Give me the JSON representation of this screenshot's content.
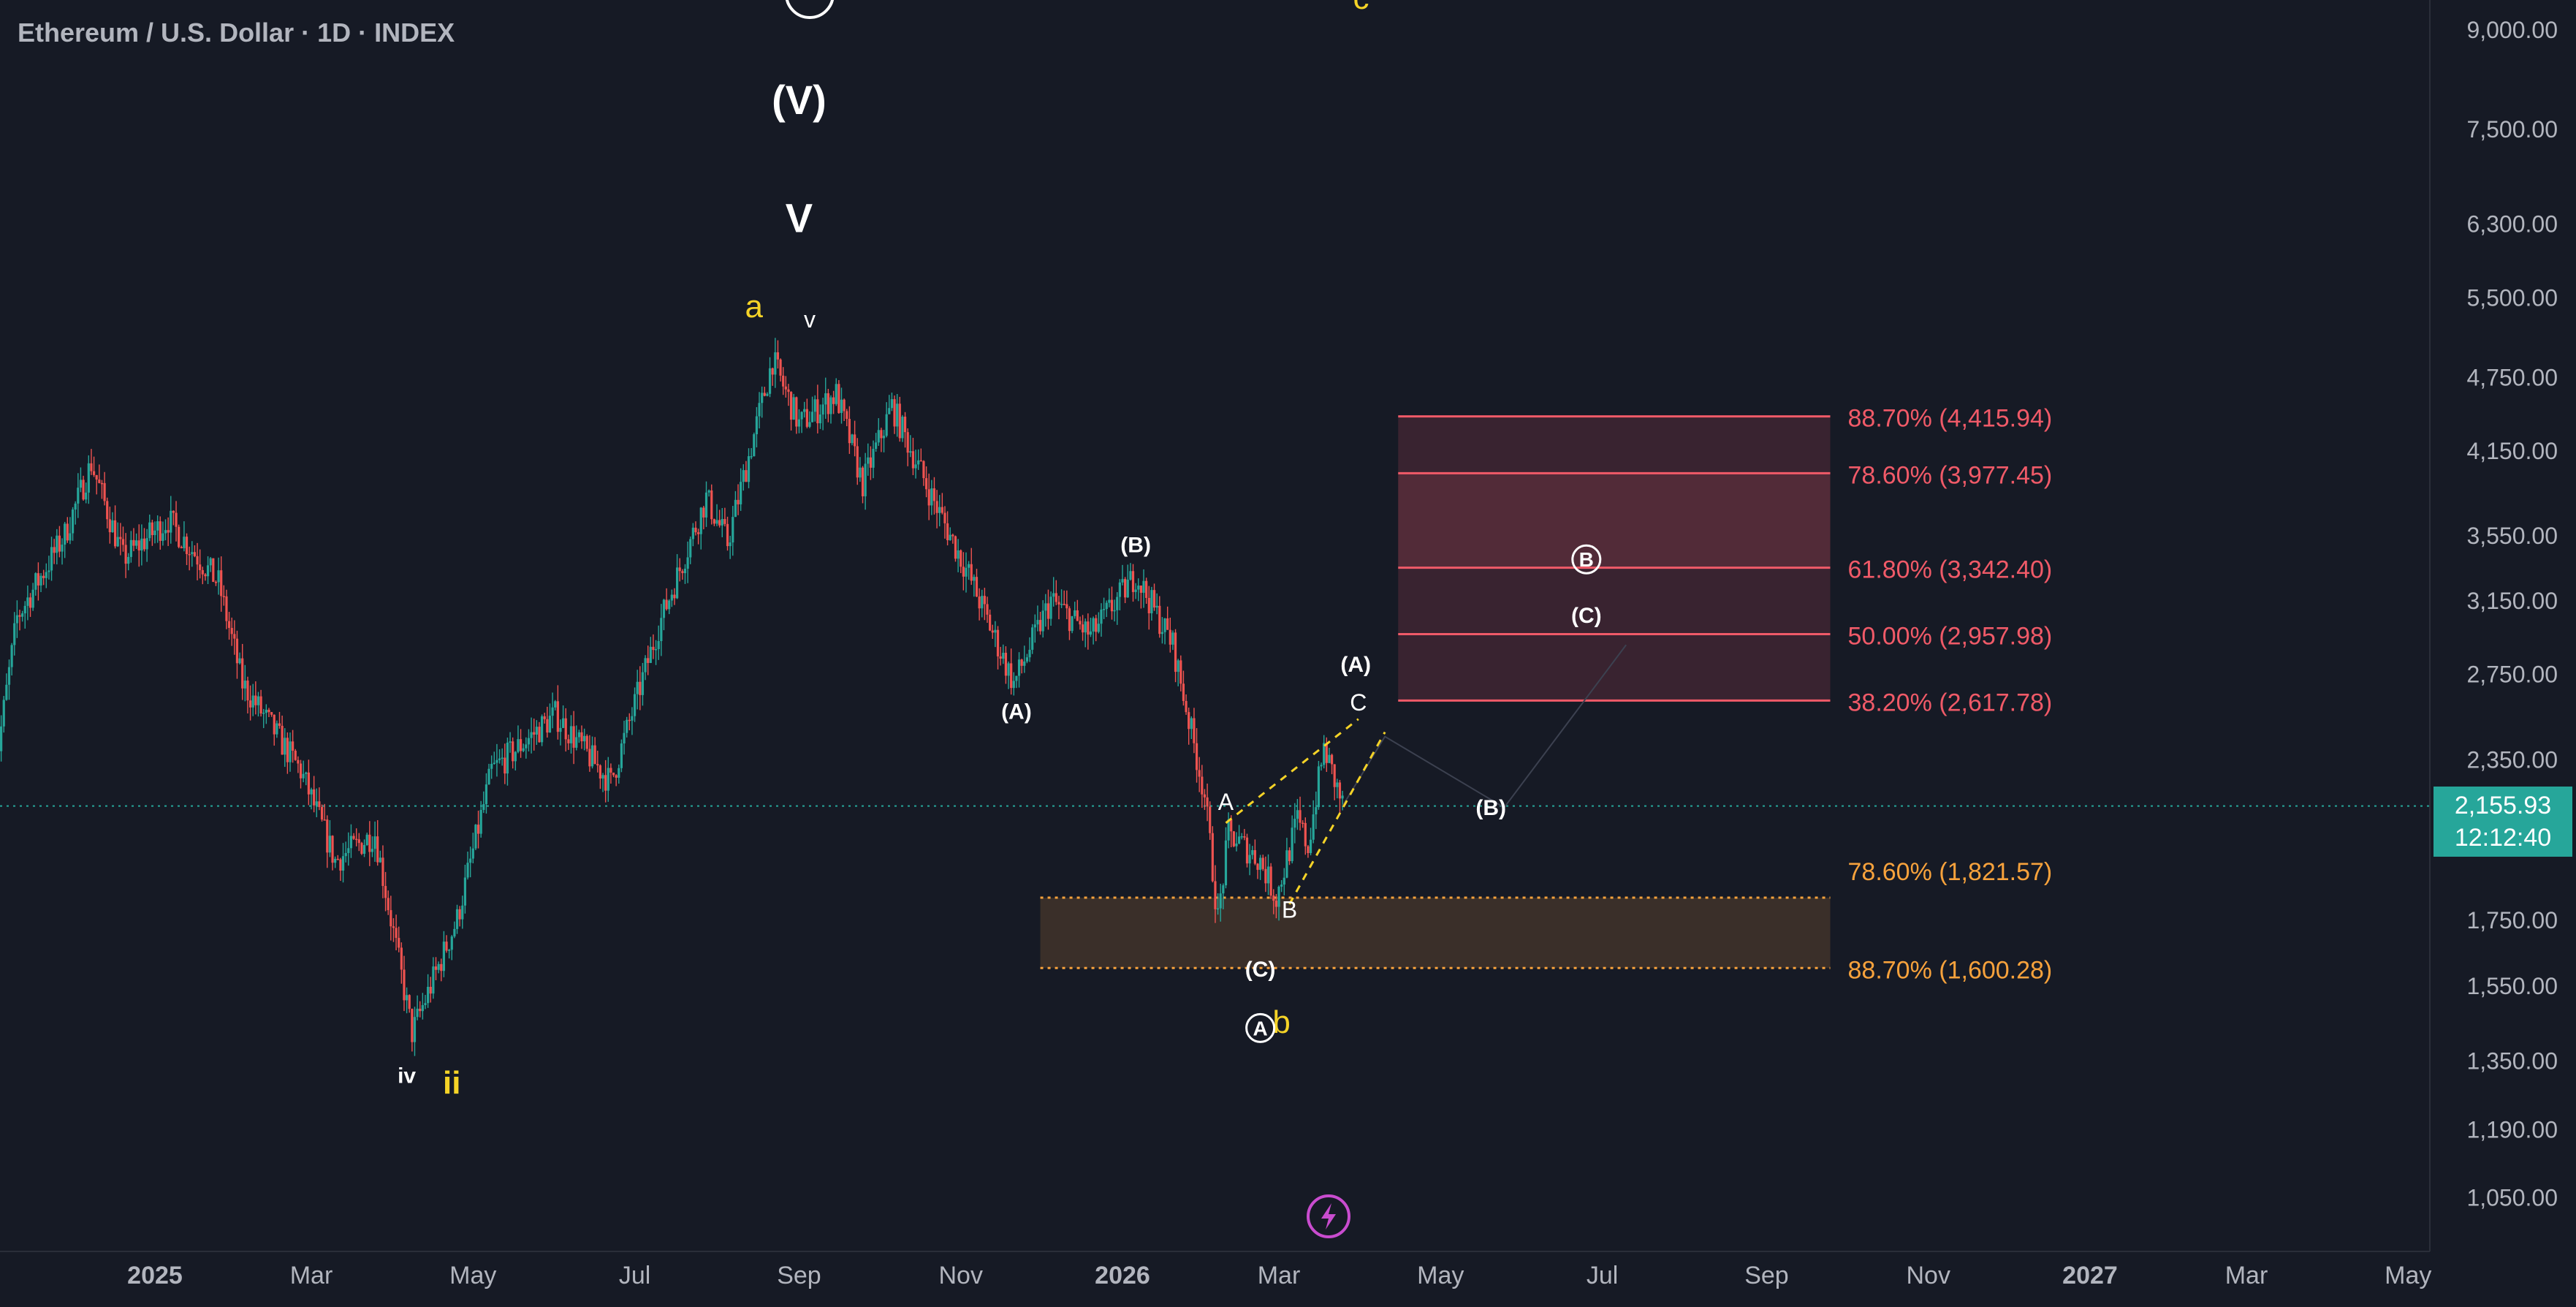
{
  "header": {
    "title": "Ethereum / U.S. Dollar · 1D · INDEX"
  },
  "last_price": {
    "value": "2,155.93",
    "countdown": "12:12:40"
  },
  "colors": {
    "background": "#161a25",
    "up": "#26a69a",
    "down": "#ef5350",
    "fib_resistance": "#f05a68",
    "fib_support": "#f7a23c",
    "wave_yellow": "#f5d327",
    "label_white": "#ffffff",
    "axis_text": "#b2b5be",
    "lightning_icon": "#c94ccf"
  },
  "icons": [
    "lightning-icon"
  ],
  "chart_data": {
    "type": "candlestick",
    "y_scale": "log",
    "ylim": [
      950,
      9500
    ],
    "y_ticks": [
      "9,000.00",
      "7,500.00",
      "6,300.00",
      "5,500.00",
      "4,750.00",
      "4,150.00",
      "3,550.00",
      "3,150.00",
      "2,750.00",
      "2,350.00",
      "1,750.00",
      "1,550.00",
      "1,350.00",
      "1,190.00",
      "1,050.00"
    ],
    "x_ticks": [
      "2025",
      "Mar",
      "May",
      "Jul",
      "Sep",
      "Nov",
      "2026",
      "Mar",
      "May",
      "Jul",
      "Sep",
      "Nov",
      "2027",
      "Mar",
      "May"
    ],
    "price_path": [
      {
        "date": "2024-11-01",
        "price": 2250
      },
      {
        "date": "2024-11-10",
        "price": 3050
      },
      {
        "date": "2024-11-28",
        "price": 3550
      },
      {
        "date": "2024-12-08",
        "price": 4050
      },
      {
        "date": "2024-12-20",
        "price": 3400
      },
      {
        "date": "2025-01-06",
        "price": 3650
      },
      {
        "date": "2025-01-25",
        "price": 3250
      },
      {
        "date": "2025-02-03",
        "price": 2700
      },
      {
        "date": "2025-02-25",
        "price": 2300
      },
      {
        "date": "2025-03-10",
        "price": 1950
      },
      {
        "date": "2025-03-25",
        "price": 2050
      },
      {
        "date": "2025-04-08",
        "price": 1420
      },
      {
        "date": "2025-04-25",
        "price": 1750
      },
      {
        "date": "2025-05-08",
        "price": 2300
      },
      {
        "date": "2025-06-01",
        "price": 2550
      },
      {
        "date": "2025-06-22",
        "price": 2250
      },
      {
        "date": "2025-07-10",
        "price": 3000
      },
      {
        "date": "2025-07-28",
        "price": 3800
      },
      {
        "date": "2025-08-05",
        "price": 3500
      },
      {
        "date": "2025-08-22",
        "price": 4900
      },
      {
        "date": "2025-09-01",
        "price": 4350
      },
      {
        "date": "2025-09-15",
        "price": 4600
      },
      {
        "date": "2025-09-25",
        "price": 3900
      },
      {
        "date": "2025-10-06",
        "price": 4500
      },
      {
        "date": "2025-10-20",
        "price": 3850
      },
      {
        "date": "2025-11-04",
        "price": 3300
      },
      {
        "date": "2025-11-21",
        "price": 2700
      },
      {
        "date": "2025-12-05",
        "price": 3150
      },
      {
        "date": "2025-12-20",
        "price": 2950
      },
      {
        "date": "2026-01-06",
        "price": 3300
      },
      {
        "date": "2026-01-20",
        "price": 2900
      },
      {
        "date": "2026-02-01",
        "price": 2200
      },
      {
        "date": "2026-02-06",
        "price": 1750
      },
      {
        "date": "2026-02-10",
        "price": 2050
      },
      {
        "date": "2026-02-22",
        "price": 1950
      },
      {
        "date": "2026-02-28",
        "price": 1820
      },
      {
        "date": "2026-03-08",
        "price": 2100
      },
      {
        "date": "2026-03-12",
        "price": 2000
      },
      {
        "date": "2026-03-18",
        "price": 2400
      },
      {
        "date": "2026-03-25",
        "price": 2160
      }
    ],
    "fib_resistance": [
      {
        "label": "88.70% (4,415.94)",
        "value": 4415.94
      },
      {
        "label": "78.60% (3,977.45)",
        "value": 3977.45
      },
      {
        "label": "61.80% (3,342.40)",
        "value": 3342.4
      },
      {
        "label": "50.00% (2,957.98)",
        "value": 2957.98
      },
      {
        "label": "38.20% (2,617.78)",
        "value": 2617.78
      }
    ],
    "fib_support": [
      {
        "label": "78.60% (1,821.57)",
        "value": 1821.57
      },
      {
        "label": "88.70% (1,600.28)",
        "value": 1600.28
      }
    ],
    "projection_path": [
      {
        "date": "2026-04-10",
        "price": 2450
      },
      {
        "date": "2026-05-25",
        "price": 2150
      },
      {
        "date": "2026-07-10",
        "price": 2900
      }
    ],
    "wave_labels": [
      {
        "text": "(V)",
        "date": "2025-09-01",
        "price": 7700,
        "color": "white"
      },
      {
        "text": "V",
        "date": "2025-09-01",
        "price": 6200,
        "color": "white"
      },
      {
        "text": "a",
        "date": "2025-08-15",
        "price": 5300,
        "color": "yellow"
      },
      {
        "text": "v",
        "date": "2025-09-05",
        "price": 5200,
        "color": "white"
      },
      {
        "text": "iv",
        "date": "2025-04-06",
        "price": 1295,
        "color": "white"
      },
      {
        "text": "ii",
        "date": "2025-04-23",
        "price": 1270,
        "color": "yellow"
      },
      {
        "text": "(B)",
        "date": "2026-01-06",
        "price": 3440,
        "color": "white"
      },
      {
        "text": "(A)",
        "date": "2025-11-22",
        "price": 2530,
        "color": "white"
      },
      {
        "text": "A",
        "date": "2026-02-09",
        "price": 2140,
        "color": "white"
      },
      {
        "text": "B",
        "date": "2026-03-05",
        "price": 1755,
        "color": "white"
      },
      {
        "text": "C",
        "date": "2026-03-31",
        "price": 2570,
        "color": "white"
      },
      {
        "text": "(A)",
        "date": "2026-03-30",
        "price": 2760,
        "color": "white"
      },
      {
        "text": "(C)",
        "date": "2026-02-22",
        "price": 1575,
        "color": "white"
      },
      {
        "text": "b",
        "date": "2026-03-02",
        "price": 1420,
        "color": "yellow"
      },
      {
        "text": "(B)",
        "date": "2026-05-20",
        "price": 2120,
        "color": "white"
      },
      {
        "text": "(C)",
        "date": "2026-06-25",
        "price": 3020,
        "color": "white"
      },
      {
        "text": "c",
        "date": "2026-04-01",
        "price": 9350,
        "color": "yellow"
      }
    ],
    "circled_labels": [
      {
        "text": "A",
        "date": "2026-02-22",
        "price": 1410
      },
      {
        "text": "B",
        "date": "2026-06-25",
        "price": 3340
      }
    ]
  }
}
